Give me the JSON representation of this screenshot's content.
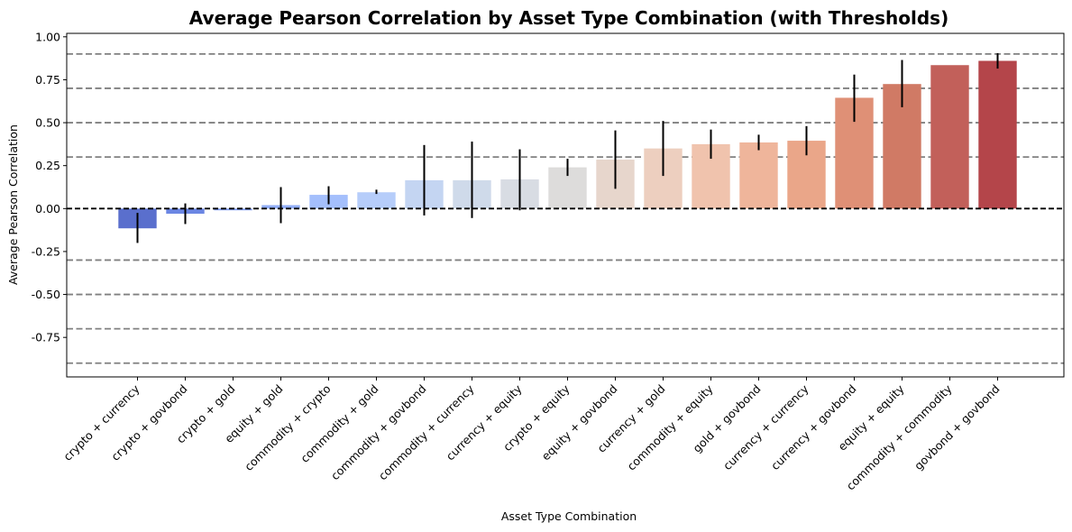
{
  "chart_data": {
    "type": "bar",
    "title": "Average Pearson Correlation by Asset Type Combination (with Thresholds)",
    "xlabel": "Asset Type Combination",
    "ylabel": "Average Pearson Correlation",
    "ylim": [
      -0.98,
      1.02
    ],
    "yticks": [
      "-0.75",
      "-0.50",
      "-0.25",
      "0.00",
      "0.25",
      "0.50",
      "0.75",
      "1.00"
    ],
    "ytick_values": [
      -0.75,
      -0.5,
      -0.25,
      0.0,
      0.25,
      0.5,
      0.75,
      1.0
    ],
    "categories": [
      "crypto + currency",
      "crypto + govbond",
      "crypto + gold",
      "equity + gold",
      "commodity + crypto",
      "commodity + gold",
      "commodity + govbond",
      "commodity + currency",
      "currency + equity",
      "crypto + equity",
      "equity + govbond",
      "currency + gold",
      "commodity + equity",
      "gold + govbond",
      "currency + currency",
      "currency + govbond",
      "equity + equity",
      "commodity + commodity",
      "govbond + govbond"
    ],
    "values": [
      -0.115,
      -0.03,
      -0.01,
      0.02,
      0.08,
      0.095,
      0.165,
      0.165,
      0.17,
      0.24,
      0.285,
      0.35,
      0.375,
      0.385,
      0.395,
      0.645,
      0.725,
      0.835,
      0.86
    ],
    "error_low": [
      -0.2,
      -0.09,
      -0.01,
      -0.085,
      0.025,
      0.085,
      -0.04,
      -0.055,
      -0.01,
      0.19,
      0.115,
      0.19,
      0.29,
      0.34,
      0.31,
      0.505,
      0.59,
      0.835,
      0.815
    ],
    "error_high": [
      -0.025,
      0.03,
      -0.01,
      0.125,
      0.13,
      0.11,
      0.37,
      0.39,
      0.345,
      0.29,
      0.455,
      0.51,
      0.46,
      0.43,
      0.48,
      0.78,
      0.865,
      0.835,
      0.905
    ],
    "colors": [
      "#5a6fcd",
      "#6b86e3",
      "#7f9bef",
      "#92aef8",
      "#a4bffc",
      "#b6cdfa",
      "#c4d5f2",
      "#cfdaea",
      "#d8dce3",
      "#dddcdb",
      "#e7d6cc",
      "#edcfbf",
      "#f0c3ad",
      "#efb59b",
      "#eaa689",
      "#df9076",
      "#d07a65",
      "#c2605a",
      "#b4454a"
    ],
    "threshold_lines": [
      0.9,
      0.7,
      0.5,
      0.3,
      -0.3,
      -0.5,
      -0.7,
      -0.9
    ],
    "zero_line": 0.0,
    "grid": false,
    "legend": "none"
  }
}
